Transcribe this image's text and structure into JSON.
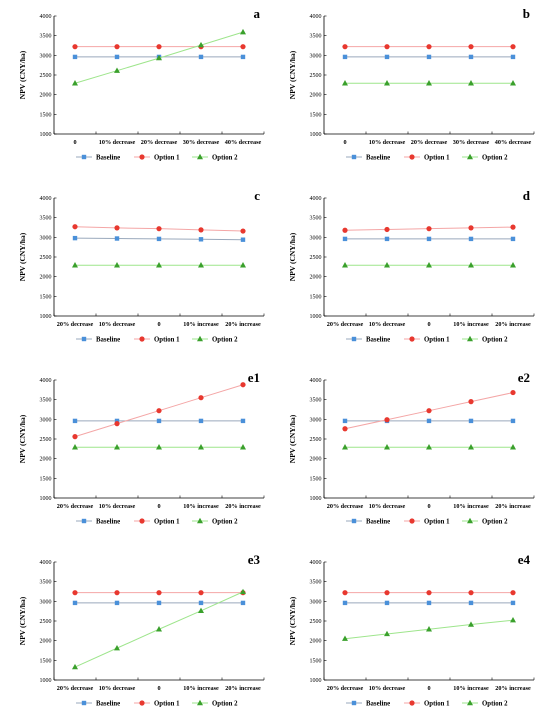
{
  "colors": {
    "Baseline": "#4a90d9",
    "Option 1": "#e8382f",
    "Option 2": "#3aa02c",
    "Baseline_line": "#9aa9bc",
    "Option 1_line": "#f4a6a6",
    "Option 2_line": "#9ee58c"
  },
  "markers": {
    "Baseline": "square",
    "Option 1": "circle",
    "Option 2": "triangle"
  },
  "chart_data": [
    {
      "type": "line",
      "panel": "a",
      "categories": [
        "0",
        "10% decrease",
        "20% decrease",
        "30% decrease",
        "40% decrease"
      ],
      "ylabel": "NPV (CNY/ha)",
      "ylim": [
        1000,
        4000
      ],
      "yticks": [
        1000,
        1500,
        2000,
        2500,
        3000,
        3500,
        4000
      ],
      "legend": [
        "Baseline",
        "Option 1",
        "Option 2"
      ],
      "legend_position": "bottom",
      "series": [
        {
          "name": "Baseline",
          "values": [
            2960,
            2960,
            2960,
            2960,
            2960
          ]
        },
        {
          "name": "Option 1",
          "values": [
            3220,
            3220,
            3220,
            3220,
            3220
          ]
        },
        {
          "name": "Option 2",
          "values": [
            2290,
            2610,
            2930,
            3260,
            3590
          ]
        }
      ]
    },
    {
      "type": "line",
      "panel": "b",
      "categories": [
        "0",
        "10% decrease",
        "20% decrease",
        "30% decrease",
        "40% decrease"
      ],
      "ylabel": "NPV (CNY/ha)",
      "ylim": [
        1000,
        4000
      ],
      "yticks": [
        1000,
        1500,
        2000,
        2500,
        3000,
        3500,
        4000
      ],
      "legend": [
        "Baseline",
        "Option 1",
        "Option 2"
      ],
      "legend_position": "bottom",
      "series": [
        {
          "name": "Baseline",
          "values": [
            2960,
            2960,
            2960,
            2960,
            2960
          ]
        },
        {
          "name": "Option 1",
          "values": [
            3220,
            3220,
            3220,
            3220,
            3220
          ]
        },
        {
          "name": "Option 2",
          "values": [
            2290,
            2290,
            2290,
            2290,
            2290
          ]
        }
      ]
    },
    {
      "type": "line",
      "panel": "c",
      "categories": [
        "20% decrease",
        "10% decrease",
        "0",
        "10% increase",
        "20% increase"
      ],
      "ylabel": "NPV (CNY/ha)",
      "ylim": [
        1000,
        4000
      ],
      "yticks": [
        1000,
        1500,
        2000,
        2500,
        3000,
        3500,
        4000
      ],
      "legend": [
        "Baseline",
        "Option 1",
        "Option 2"
      ],
      "legend_position": "bottom",
      "series": [
        {
          "name": "Baseline",
          "values": [
            2980,
            2970,
            2960,
            2950,
            2940
          ]
        },
        {
          "name": "Option 1",
          "values": [
            3270,
            3240,
            3220,
            3190,
            3160
          ]
        },
        {
          "name": "Option 2",
          "values": [
            2290,
            2290,
            2290,
            2290,
            2290
          ]
        }
      ]
    },
    {
      "type": "line",
      "panel": "d",
      "categories": [
        "20% decrease",
        "10% decrease",
        "0",
        "10% increase",
        "20% increase"
      ],
      "ylabel": "NPV (CNY/ha)",
      "ylim": [
        1000,
        4000
      ],
      "yticks": [
        1000,
        1500,
        2000,
        2500,
        3000,
        3500,
        4000
      ],
      "legend": [
        "Baseline",
        "Option 1",
        "Option 2"
      ],
      "legend_position": "bottom",
      "series": [
        {
          "name": "Baseline",
          "values": [
            2960,
            2960,
            2960,
            2960,
            2960
          ]
        },
        {
          "name": "Option 1",
          "values": [
            3180,
            3200,
            3220,
            3240,
            3260
          ]
        },
        {
          "name": "Option 2",
          "values": [
            2290,
            2290,
            2290,
            2290,
            2290
          ]
        }
      ]
    },
    {
      "type": "line",
      "panel": "e1",
      "categories": [
        "20% decrease",
        "10% decrease",
        "0",
        "10% increase",
        "20% increase"
      ],
      "ylabel": "NPV (CNY/ha)",
      "ylim": [
        1000,
        4000
      ],
      "yticks": [
        1000,
        1500,
        2000,
        2500,
        3000,
        3500,
        4000
      ],
      "legend": [
        "Baseline",
        "Option 1",
        "Option 2"
      ],
      "legend_position": "bottom",
      "series": [
        {
          "name": "Baseline",
          "values": [
            2960,
            2960,
            2960,
            2960,
            2960
          ]
        },
        {
          "name": "Option 1",
          "values": [
            2560,
            2890,
            3220,
            3550,
            3880
          ]
        },
        {
          "name": "Option 2",
          "values": [
            2290,
            2290,
            2290,
            2290,
            2290
          ]
        }
      ]
    },
    {
      "type": "line",
      "panel": "e2",
      "categories": [
        "20% decrease",
        "10% decrease",
        "0",
        "10% increase",
        "20% increase"
      ],
      "ylabel": "NPV (CNY/ha)",
      "ylim": [
        1000,
        4000
      ],
      "yticks": [
        1000,
        1500,
        2000,
        2500,
        3000,
        3500,
        4000
      ],
      "legend": [
        "Baseline",
        "Option 1",
        "Option 2"
      ],
      "legend_position": "bottom",
      "series": [
        {
          "name": "Baseline",
          "values": [
            2960,
            2960,
            2960,
            2960,
            2960
          ]
        },
        {
          "name": "Option 1",
          "values": [
            2760,
            2990,
            3220,
            3450,
            3680
          ]
        },
        {
          "name": "Option 2",
          "values": [
            2290,
            2290,
            2290,
            2290,
            2290
          ]
        }
      ]
    },
    {
      "type": "line",
      "panel": "e3",
      "categories": [
        "20% decrease",
        "10% decrease",
        "0",
        "10% increase",
        "20% increase"
      ],
      "ylabel": "NPV (CNY/ha)",
      "ylim": [
        1000,
        4000
      ],
      "yticks": [
        1000,
        1500,
        2000,
        2500,
        3000,
        3500,
        4000
      ],
      "legend": [
        "Baseline",
        "Option 1",
        "Option 2"
      ],
      "legend_position": "bottom",
      "series": [
        {
          "name": "Baseline",
          "values": [
            2960,
            2960,
            2960,
            2960,
            2960
          ]
        },
        {
          "name": "Option 1",
          "values": [
            3220,
            3220,
            3220,
            3220,
            3220
          ]
        },
        {
          "name": "Option 2",
          "values": [
            1330,
            1810,
            2290,
            2760,
            3240
          ]
        }
      ]
    },
    {
      "type": "line",
      "panel": "e4",
      "categories": [
        "20% decrease",
        "10% decrease",
        "0",
        "10% increase",
        "20% increase"
      ],
      "ylabel": "NPV (CNY/ha)",
      "ylim": [
        1000,
        4000
      ],
      "yticks": [
        1000,
        1500,
        2000,
        2500,
        3000,
        3500,
        4000
      ],
      "legend": [
        "Baseline",
        "Option 1",
        "Option 2"
      ],
      "legend_position": "bottom",
      "series": [
        {
          "name": "Baseline",
          "values": [
            2960,
            2960,
            2960,
            2960,
            2960
          ]
        },
        {
          "name": "Option 1",
          "values": [
            3220,
            3220,
            3220,
            3220,
            3220
          ]
        },
        {
          "name": "Option 2",
          "values": [
            2050,
            2170,
            2290,
            2410,
            2520
          ]
        }
      ]
    }
  ]
}
